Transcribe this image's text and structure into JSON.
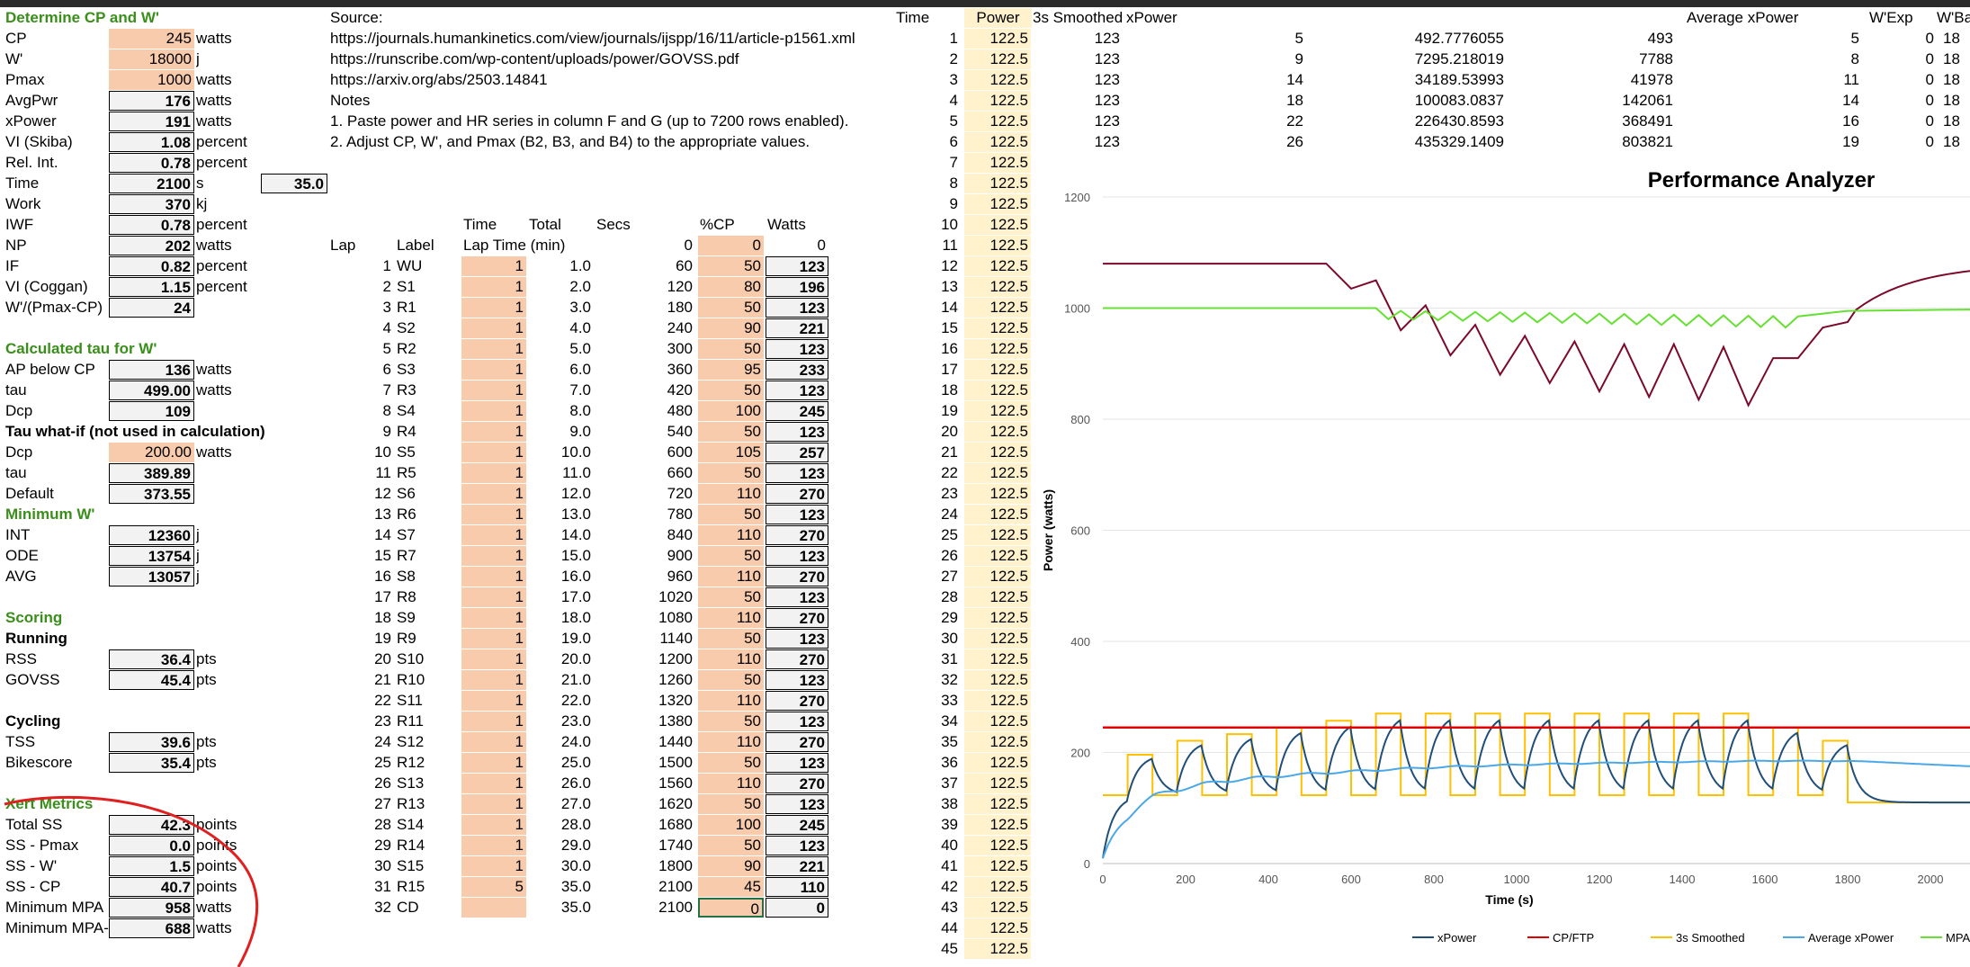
{
  "sections": {
    "determine": "Determine CP and W'",
    "tau_calc": "Calculated tau for W'",
    "tau_whatif": "Tau what-if (not used in calculation)",
    "min_w": "Minimum W'",
    "scoring": "Scoring",
    "running": "Running",
    "cycling": "Cycling",
    "xert": "Xert Metrics"
  },
  "params": [
    {
      "label": "CP",
      "value": "245",
      "unit": "watts",
      "style": "orange"
    },
    {
      "label": "W'",
      "value": "18000",
      "unit": "j",
      "style": "orange"
    },
    {
      "label": "Pmax",
      "value": "1000",
      "unit": "watts",
      "style": "orange"
    },
    {
      "label": "AvgPwr",
      "value": "176",
      "unit": "watts",
      "style": "box"
    },
    {
      "label": "xPower",
      "value": "191",
      "unit": "watts",
      "style": "box"
    },
    {
      "label": "VI (Skiba)",
      "value": "1.08",
      "unit": "percent",
      "style": "box"
    },
    {
      "label": "Rel. Int.",
      "value": "0.78",
      "unit": "percent",
      "style": "box"
    },
    {
      "label": "Time",
      "value": "2100",
      "unit": "s",
      "style": "box"
    },
    {
      "label": "Work",
      "value": "370",
      "unit": "kj",
      "style": "box"
    },
    {
      "label": "IWF",
      "value": "0.78",
      "unit": "percent",
      "style": "box"
    },
    {
      "label": "NP",
      "value": "202",
      "unit": "watts",
      "style": "box"
    },
    {
      "label": "IF",
      "value": "0.82",
      "unit": "percent",
      "style": "box"
    },
    {
      "label": "VI (Coggan)",
      "value": "1.15",
      "unit": "percent",
      "style": "box"
    },
    {
      "label": "W'/(Pmax-CP)",
      "value": "24",
      "unit": "",
      "style": "box"
    }
  ],
  "time_minutes": "35.0",
  "tau": [
    {
      "label": "AP below CP",
      "value": "136",
      "unit": "watts",
      "style": "box"
    },
    {
      "label": "tau",
      "value": "499.00",
      "unit": "watts",
      "style": "box"
    },
    {
      "label": "Dcp",
      "value": "109",
      "unit": "",
      "style": "box"
    }
  ],
  "tau_whatif": [
    {
      "label": "Dcp",
      "value": "200.00",
      "unit": "watts",
      "style": "orange"
    },
    {
      "label": "tau",
      "value": "389.89",
      "unit": "",
      "style": "box"
    },
    {
      "label": "Default",
      "value": "373.55",
      "unit": "",
      "style": "box"
    }
  ],
  "min_w": [
    {
      "label": "INT",
      "value": "12360",
      "unit": "j"
    },
    {
      "label": "ODE",
      "value": "13754",
      "unit": "j"
    },
    {
      "label": "AVG",
      "value": "13057",
      "unit": "j"
    }
  ],
  "running": [
    {
      "label": "RSS",
      "value": "36.4",
      "unit": "pts"
    },
    {
      "label": "GOVSS",
      "value": "45.4",
      "unit": "pts"
    }
  ],
  "cycling": [
    {
      "label": "TSS",
      "value": "39.6",
      "unit": "pts"
    },
    {
      "label": "Bikescore",
      "value": "35.4",
      "unit": "pts"
    }
  ],
  "xert": [
    {
      "label": "Total SS",
      "value": "42.3",
      "unit": "points"
    },
    {
      "label": "SS - Pmax",
      "value": "0.0",
      "unit": "points"
    },
    {
      "label": "SS - W'",
      "value": "1.5",
      "unit": "points"
    },
    {
      "label": "SS - CP",
      "value": "40.7",
      "unit": "points"
    },
    {
      "label": "Minimum MPA",
      "value": "958",
      "unit": "watts"
    },
    {
      "label": "Minimum MPA-I",
      "value": "688",
      "unit": "watts"
    }
  ],
  "source": {
    "label": "Source:",
    "links": [
      "https://journals.humankinetics.com/view/journals/ijspp/16/11/article-p1561.xml",
      "https://runscribe.com/wp-content/uploads/power/GOVSS.pdf",
      "https://arxiv.org/abs/2503.14841"
    ],
    "notes_label": "Notes",
    "notes": [
      "1. Paste power and HR series in column F and G (up to 7200 rows enabled).",
      "2. Adjust CP, W', and Pmax (B2, B3, and B4) to the appropriate values."
    ]
  },
  "lap_headers": {
    "time1": "Time",
    "total": "Total",
    "secs": "Secs",
    "pcp": "%CP",
    "watts": "Watts",
    "lap": "Lap",
    "label": "Label",
    "laptime": "Lap Time (min)",
    "zero_secs": "0",
    "zero_pcp": "0",
    "zero_watts": "0"
  },
  "laps": [
    [
      "1",
      "WU",
      "1",
      "1.0",
      "60",
      "50",
      "123"
    ],
    [
      "2",
      "S1",
      "1",
      "2.0",
      "120",
      "80",
      "196"
    ],
    [
      "3",
      "R1",
      "1",
      "3.0",
      "180",
      "50",
      "123"
    ],
    [
      "4",
      "S2",
      "1",
      "4.0",
      "240",
      "90",
      "221"
    ],
    [
      "5",
      "R2",
      "1",
      "5.0",
      "300",
      "50",
      "123"
    ],
    [
      "6",
      "S3",
      "1",
      "6.0",
      "360",
      "95",
      "233"
    ],
    [
      "7",
      "R3",
      "1",
      "7.0",
      "420",
      "50",
      "123"
    ],
    [
      "8",
      "S4",
      "1",
      "8.0",
      "480",
      "100",
      "245"
    ],
    [
      "9",
      "R4",
      "1",
      "9.0",
      "540",
      "50",
      "123"
    ],
    [
      "10",
      "S5",
      "1",
      "10.0",
      "600",
      "105",
      "257"
    ],
    [
      "11",
      "R5",
      "1",
      "11.0",
      "660",
      "50",
      "123"
    ],
    [
      "12",
      "S6",
      "1",
      "12.0",
      "720",
      "110",
      "270"
    ],
    [
      "13",
      "R6",
      "1",
      "13.0",
      "780",
      "50",
      "123"
    ],
    [
      "14",
      "S7",
      "1",
      "14.0",
      "840",
      "110",
      "270"
    ],
    [
      "15",
      "R7",
      "1",
      "15.0",
      "900",
      "50",
      "123"
    ],
    [
      "16",
      "S8",
      "1",
      "16.0",
      "960",
      "110",
      "270"
    ],
    [
      "17",
      "R8",
      "1",
      "17.0",
      "1020",
      "50",
      "123"
    ],
    [
      "18",
      "S9",
      "1",
      "18.0",
      "1080",
      "110",
      "270"
    ],
    [
      "19",
      "R9",
      "1",
      "19.0",
      "1140",
      "50",
      "123"
    ],
    [
      "20",
      "S10",
      "1",
      "20.0",
      "1200",
      "110",
      "270"
    ],
    [
      "21",
      "R10",
      "1",
      "21.0",
      "1260",
      "50",
      "123"
    ],
    [
      "22",
      "S11",
      "1",
      "22.0",
      "1320",
      "110",
      "270"
    ],
    [
      "23",
      "R11",
      "1",
      "23.0",
      "1380",
      "50",
      "123"
    ],
    [
      "24",
      "S12",
      "1",
      "24.0",
      "1440",
      "110",
      "270"
    ],
    [
      "25",
      "R12",
      "1",
      "25.0",
      "1500",
      "50",
      "123"
    ],
    [
      "26",
      "S13",
      "1",
      "26.0",
      "1560",
      "110",
      "270"
    ],
    [
      "27",
      "R13",
      "1",
      "27.0",
      "1620",
      "50",
      "123"
    ],
    [
      "28",
      "S14",
      "1",
      "28.0",
      "1680",
      "100",
      "245"
    ],
    [
      "29",
      "R14",
      "1",
      "29.0",
      "1740",
      "50",
      "123"
    ],
    [
      "30",
      "S15",
      "1",
      "30.0",
      "1800",
      "90",
      "221"
    ],
    [
      "31",
      "R15",
      "5",
      "35.0",
      "2100",
      "45",
      "110"
    ],
    [
      "32",
      "CD",
      "",
      "35.0",
      "2100",
      "0",
      "0"
    ]
  ],
  "series_headers": {
    "time": "Time",
    "power": "Power",
    "smoothed": "3s Smoothed",
    "xpower": "xPower",
    "avg_xpower": "Average xPower",
    "wexp": "W'Exp",
    "wbal": "W'Ba"
  },
  "series_rows": [
    [
      "1",
      "122.5",
      "123",
      "5",
      "492.7776055",
      "493",
      "5",
      "0",
      "18"
    ],
    [
      "2",
      "122.5",
      "123",
      "9",
      "7295.218019",
      "7788",
      "8",
      "0",
      "18"
    ],
    [
      "3",
      "122.5",
      "123",
      "14",
      "34189.53993",
      "41978",
      "11",
      "0",
      "18"
    ],
    [
      "4",
      "122.5",
      "123",
      "18",
      "100083.0837",
      "142061",
      "14",
      "0",
      "18"
    ],
    [
      "5",
      "122.5",
      "123",
      "22",
      "226430.8593",
      "368491",
      "16",
      "0",
      "18"
    ],
    [
      "6",
      "122.5",
      "123",
      "26",
      "435329.1409",
      "803821",
      "19",
      "0",
      "18"
    ]
  ],
  "power_col_value": "122.5",
  "chart_data": {
    "type": "line",
    "title": "Performance Analyzer",
    "xlabel": "Time (s)",
    "ylabel": "Power (watts)",
    "xlim": [
      0,
      2400
    ],
    "ylim": [
      0,
      1200
    ],
    "xticks": [
      "0",
      "200",
      "400",
      "600",
      "800",
      "1000",
      "1200",
      "1400",
      "1600",
      "1800",
      "2000",
      "2200",
      "240"
    ],
    "yticks": [
      "0",
      "200",
      "400",
      "600",
      "800",
      "1000",
      "1200"
    ],
    "legend": [
      "xPower",
      "CP/FTP",
      "3s Smoothed",
      "Average xPower",
      "MPA(ODE"
    ],
    "colors": {
      "xPower": "#1f4e79",
      "CP": "#e00000",
      "smoothed": "#ffc000",
      "avg": "#4aa8e8",
      "mpa_green": "#66e033",
      "mpa_dark": "#7b0a2a"
    },
    "cp": 245,
    "intervals": [
      [
        0,
        60,
        123
      ],
      [
        60,
        120,
        196
      ],
      [
        120,
        180,
        123
      ],
      [
        180,
        240,
        221
      ],
      [
        240,
        300,
        123
      ],
      [
        300,
        360,
        233
      ],
      [
        360,
        420,
        123
      ],
      [
        420,
        480,
        245
      ],
      [
        480,
        540,
        123
      ],
      [
        540,
        600,
        257
      ],
      [
        600,
        660,
        123
      ],
      [
        660,
        720,
        270
      ],
      [
        720,
        780,
        123
      ],
      [
        780,
        840,
        270
      ],
      [
        840,
        900,
        123
      ],
      [
        900,
        960,
        270
      ],
      [
        960,
        1020,
        123
      ],
      [
        1020,
        1080,
        270
      ],
      [
        1080,
        1140,
        123
      ],
      [
        1140,
        1200,
        270
      ],
      [
        1200,
        1260,
        123
      ],
      [
        1260,
        1320,
        270
      ],
      [
        1320,
        1380,
        123
      ],
      [
        1380,
        1440,
        270
      ],
      [
        1440,
        1500,
        123
      ],
      [
        1500,
        1560,
        270
      ],
      [
        1560,
        1620,
        123
      ],
      [
        1620,
        1680,
        245
      ],
      [
        1680,
        1740,
        123
      ],
      [
        1740,
        1800,
        221
      ],
      [
        1800,
        2100,
        110
      ],
      [
        2100,
        2400,
        0
      ]
    ]
  }
}
